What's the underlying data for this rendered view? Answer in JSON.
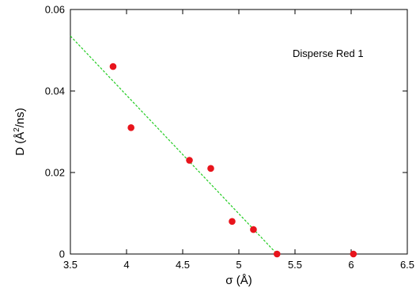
{
  "chart_data": {
    "type": "scatter",
    "xlabel": "σ (Å)",
    "ylabel_parts": {
      "pre": "D (Å",
      "sup": "2",
      "post": "/ns)"
    },
    "xlim": [
      3.5,
      6.5
    ],
    "ylim": [
      0,
      0.06
    ],
    "x_ticks": [
      3.5,
      4,
      4.5,
      5,
      5.5,
      6,
      6.5
    ],
    "x_tick_labels": [
      "3.5",
      "4",
      "4.5",
      "5",
      "5.5",
      "6",
      "6.5"
    ],
    "y_ticks": [
      0,
      0.02,
      0.04,
      0.06
    ],
    "y_tick_labels": [
      "0",
      "0.02",
      "0.04",
      "0.06"
    ],
    "grid": false,
    "annotation": "Disperse Red 1",
    "series": [
      {
        "type": "scatter",
        "color": "#e8141c",
        "points": [
          {
            "x": 3.88,
            "y": 0.046
          },
          {
            "x": 4.04,
            "y": 0.031
          },
          {
            "x": 4.56,
            "y": 0.023
          },
          {
            "x": 4.75,
            "y": 0.021
          },
          {
            "x": 4.94,
            "y": 0.008
          },
          {
            "x": 5.13,
            "y": 0.006
          },
          {
            "x": 5.34,
            "y": 0.0
          },
          {
            "x": 6.02,
            "y": 0.0
          }
        ]
      },
      {
        "type": "line",
        "style": "dashed",
        "color": "#22cc22",
        "points": [
          {
            "x": 3.5,
            "y": 0.0535
          },
          {
            "x": 5.34,
            "y": 0.0
          }
        ]
      }
    ]
  }
}
